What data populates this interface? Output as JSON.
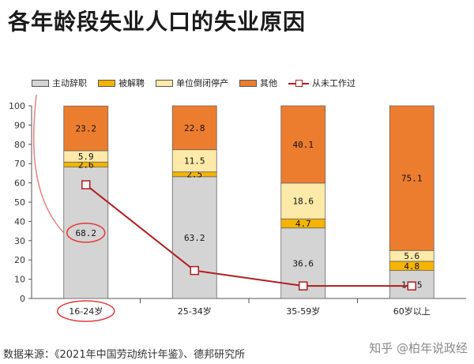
{
  "title": "各年龄段失业人口的失业原因",
  "chart_data": {
    "type": "bar",
    "stacked": true,
    "categories": [
      "16-24岁",
      "25-34岁",
      "35-59岁",
      "60岁以上"
    ],
    "series": [
      {
        "name": "主动辞职",
        "values": [
          68.2,
          63.2,
          36.6,
          14.5
        ],
        "color": "#d4d4d4",
        "labels": [
          "68.2",
          "63.2",
          "36.6",
          "14.5"
        ]
      },
      {
        "name": "被解聘",
        "values": [
          2.6,
          2.5,
          4.7,
          4.8
        ],
        "color": "#f4b400",
        "labels": [
          "2.6",
          "2.5",
          "4.7",
          "4.8"
        ]
      },
      {
        "name": "单位倒闭停产",
        "values": [
          5.9,
          11.5,
          18.6,
          5.6
        ],
        "color": "#fde9a8",
        "labels": [
          "5.9",
          "11.5",
          "18.6",
          "5.6"
        ]
      },
      {
        "name": "其他",
        "values": [
          23.2,
          22.8,
          40.1,
          75.1
        ],
        "color": "#ec7d2f",
        "labels": [
          "23.2",
          "22.8",
          "40.1",
          "75.1"
        ]
      }
    ],
    "line_series": {
      "name": "从未工作过",
      "values": [
        59,
        14.5,
        6.5,
        6.5
      ],
      "color": "#b01e1e"
    },
    "ylim": [
      0,
      100
    ],
    "yticks": [
      "0",
      "10",
      "20",
      "30",
      "40",
      "50",
      "60",
      "70",
      "80",
      "90",
      "100"
    ],
    "grid": false,
    "legend": "top",
    "annotation_note": "16-24岁 value and category label circled in red"
  },
  "source": "数据来源：《2021年中国劳动统计年鉴》、德邦研究所",
  "watermark": "知乎 @柏年说政经"
}
